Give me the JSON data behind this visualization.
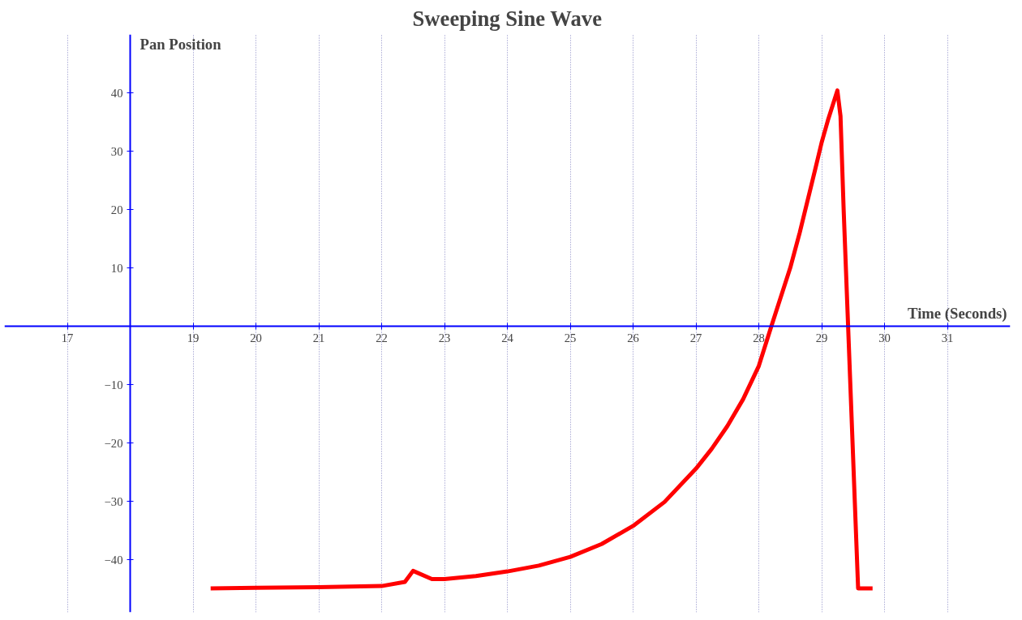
{
  "chart_data": {
    "type": "line",
    "title": "Sweeping Sine Wave",
    "xlabel": "Time (Seconds)",
    "ylabel": "Pan Position",
    "x": [
      19.28,
      20,
      21,
      22,
      22.37,
      22.5,
      22.8,
      23,
      23.5,
      24,
      24.5,
      25,
      25.5,
      26,
      26.5,
      27,
      27.25,
      27.5,
      27.75,
      28,
      28.2,
      28.35,
      28.5,
      28.65,
      28.8,
      28.9,
      29,
      29.1,
      29.25,
      29.3,
      29.35,
      29.58,
      29.81
    ],
    "series": [
      {
        "color": "#ff0000",
        "values": [
          -44.9,
          -44.8,
          -44.7,
          -44.5,
          -43.8,
          -41.9,
          -43.3,
          -43.3,
          -42.8,
          -42,
          -41,
          -39.5,
          -37.3,
          -34.2,
          -30.1,
          -24.4,
          -21,
          -17.1,
          -12.5,
          -6.8,
          0,
          5,
          10,
          16,
          22.6,
          27,
          31.5,
          35.3,
          40.4,
          36,
          20,
          -44.9,
          -44.9
        ]
      }
    ],
    "xlim": [
      16,
      32
    ],
    "ylim": [
      -49,
      50
    ],
    "xticks": [
      17,
      19,
      20,
      21,
      22,
      23,
      24,
      25,
      26,
      27,
      28,
      29,
      30,
      31
    ],
    "yticks": [
      -40,
      -30,
      -20,
      -10,
      10,
      20,
      30,
      40
    ],
    "grid": "x",
    "marker": "none",
    "line_style": "solid"
  }
}
